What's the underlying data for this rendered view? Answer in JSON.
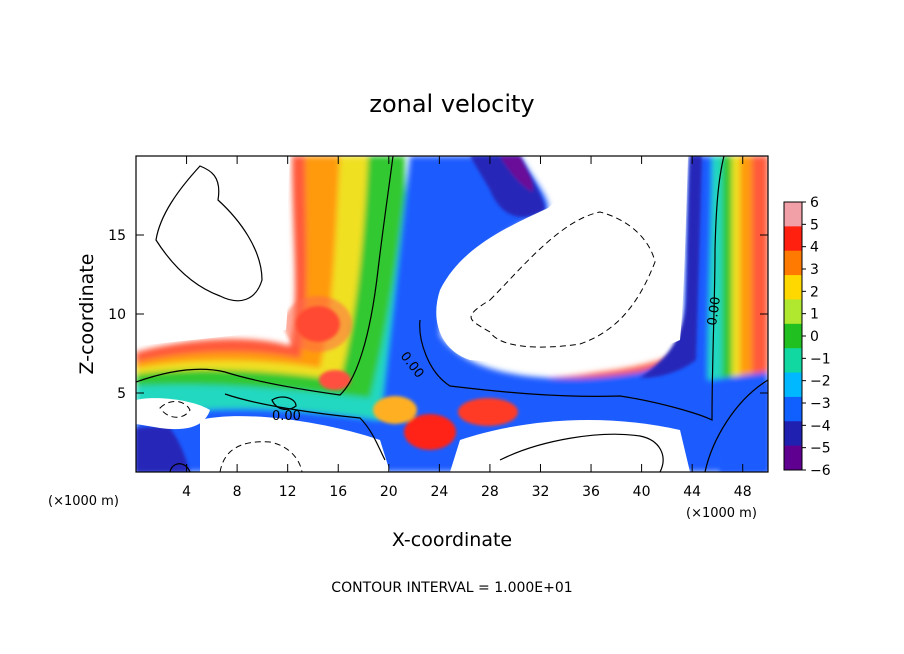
{
  "chart_data": {
    "type": "heatmap",
    "title": "zonal velocity",
    "xlabel": "X-coordinate",
    "ylabel": "Z-coordinate",
    "x_unit": "(×1000 m)",
    "x_ticks": [
      4,
      8,
      12,
      16,
      20,
      24,
      28,
      32,
      36,
      40,
      44,
      48
    ],
    "y_ticks": [
      5,
      10,
      15
    ],
    "xlim": [
      0,
      50
    ],
    "ylim": [
      0,
      20
    ],
    "colorbar": {
      "ticks": [
        6,
        5,
        4,
        3,
        2,
        1,
        0,
        -1,
        -2,
        -3,
        -4,
        -5,
        -6
      ],
      "tick_labels": [
        "6",
        "5",
        "4",
        "3",
        "2",
        "1",
        "0",
        "−1",
        "−2",
        "−3",
        "−4",
        "−5",
        "−6"
      ],
      "range": [
        -6,
        6
      ],
      "colors": [
        "#f2a0a8",
        "#ff2010",
        "#ff7a00",
        "#ffd800",
        "#b0e830",
        "#20c020",
        "#10d8a0",
        "#00b8ff",
        "#1060ff",
        "#2020b0",
        "#600090"
      ]
    },
    "contour_labels": [
      "0.00",
      "0.00",
      "0.00"
    ],
    "annotation": "CONTOUR INTERVAL = 1.000E+01",
    "grid": false
  }
}
